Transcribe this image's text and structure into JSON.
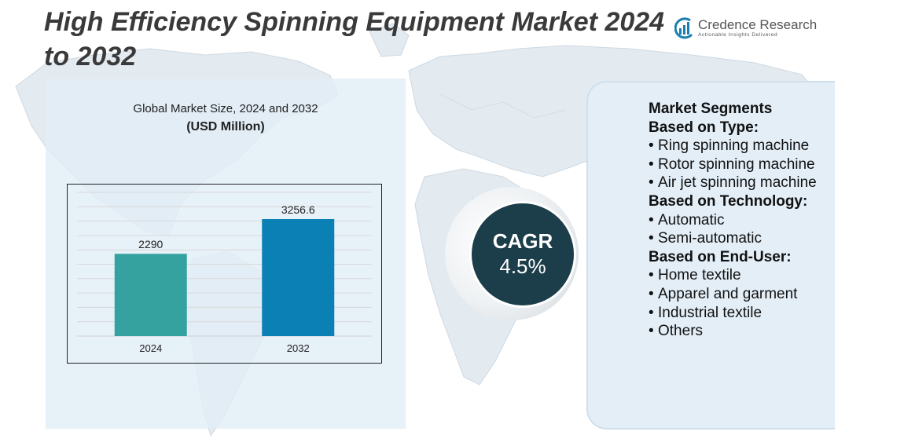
{
  "title": "High Efficiency Spinning Equipment Market 2024 to 2032",
  "logo": {
    "name": "Credence Research",
    "tagline": "Actionable Insights Delivered"
  },
  "chart_data": {
    "type": "bar",
    "title": "Global Market Size, 2024 and 2032",
    "subtitle": "(USD Million)",
    "categories": [
      "2024",
      "2032"
    ],
    "values": [
      2290,
      3256.6
    ],
    "value_labels": [
      "2290",
      "3256.6"
    ],
    "colors": [
      "#36a2a0",
      "#0b80b4"
    ],
    "ylim": [
      0,
      4000
    ],
    "grid": true,
    "xlabel": "",
    "ylabel": ""
  },
  "cagr": {
    "label": "CAGR",
    "value": "4.5%"
  },
  "segments": {
    "heading": "Market Segments",
    "groups": [
      {
        "title": "Based on Type:",
        "items": [
          "Ring spinning machine",
          "Rotor spinning machine",
          "Air jet spinning machine"
        ]
      },
      {
        "title": "Based on Technology:",
        "items": [
          "Automatic",
          "Semi-automatic"
        ]
      },
      {
        "title": "Based on End-User:",
        "items": [
          "Home textile",
          "Apparel and garment",
          "Industrial textile",
          "Others"
        ]
      }
    ]
  },
  "colors": {
    "title_text": "#3a3a3a",
    "panel_bg": "#e2eef6",
    "cagr_circle": "#1c3d4a",
    "map": "#dfe7ee"
  }
}
